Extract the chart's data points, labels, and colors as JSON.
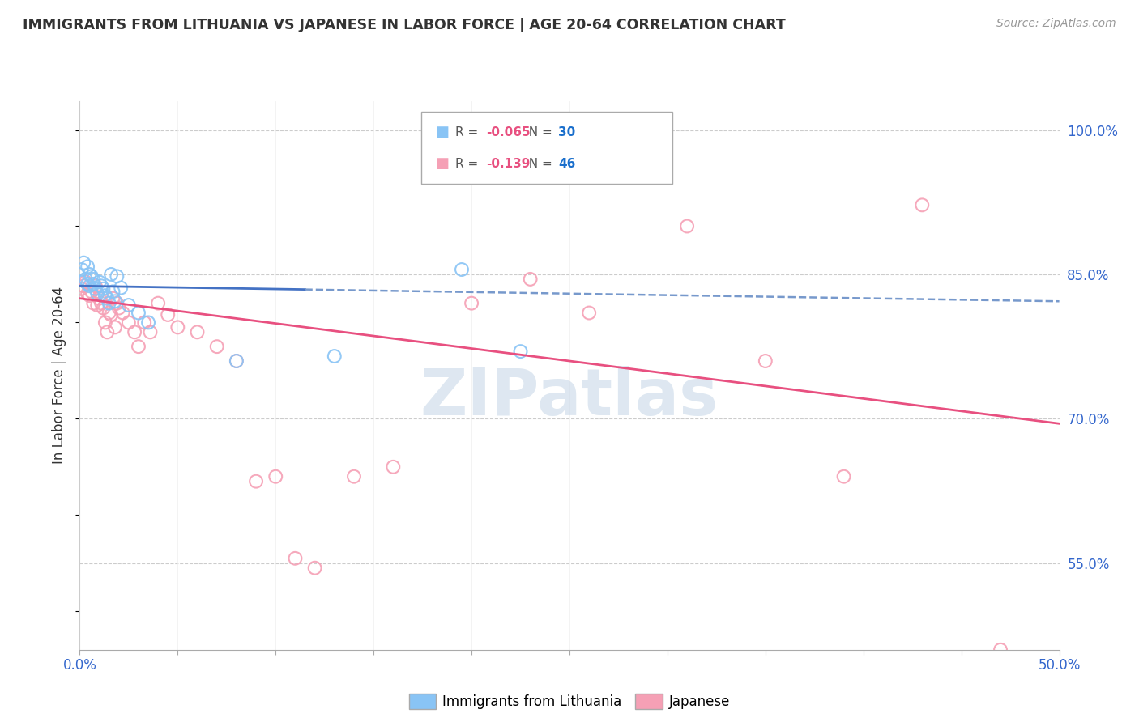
{
  "title": "IMMIGRANTS FROM LITHUANIA VS JAPANESE IN LABOR FORCE | AGE 20-64 CORRELATION CHART",
  "source": "Source: ZipAtlas.com",
  "ylabel": "In Labor Force | Age 20-64",
  "xlim": [
    0.0,
    0.5
  ],
  "ylim": [
    0.46,
    1.03
  ],
  "xtick_vals": [
    0.0,
    0.5
  ],
  "xtick_labels": [
    "0.0%",
    "50.0%"
  ],
  "ytick_vals": [
    0.55,
    0.7,
    0.85,
    1.0
  ],
  "ytick_labels": [
    "55.0%",
    "70.0%",
    "85.0%",
    "100.0%"
  ],
  "grid_vals": [
    0.55,
    0.7,
    0.85,
    1.0
  ],
  "grid_color": "#cccccc",
  "background_color": "#ffffff",
  "watermark": "ZIPatlas",
  "watermark_color": "#c8d8e8",
  "series1_label": "Immigrants from Lithuania",
  "series1_color": "#89c4f5",
  "series1_R": "-0.065",
  "series1_N": "30",
  "series2_label": "Japanese",
  "series2_color": "#f5a0b5",
  "series2_R": "-0.139",
  "series2_N": "46",
  "series1_x": [
    0.001,
    0.002,
    0.003,
    0.004,
    0.004,
    0.005,
    0.005,
    0.006,
    0.007,
    0.007,
    0.008,
    0.009,
    0.01,
    0.011,
    0.012,
    0.013,
    0.014,
    0.015,
    0.016,
    0.017,
    0.018,
    0.019,
    0.021,
    0.025,
    0.03,
    0.035,
    0.08,
    0.13,
    0.195,
    0.225
  ],
  "series1_y": [
    0.855,
    0.862,
    0.845,
    0.858,
    0.84,
    0.85,
    0.838,
    0.848,
    0.845,
    0.84,
    0.835,
    0.83,
    0.842,
    0.838,
    0.835,
    0.828,
    0.825,
    0.82,
    0.85,
    0.832,
    0.822,
    0.848,
    0.836,
    0.818,
    0.81,
    0.8,
    0.76,
    0.765,
    0.855,
    0.77
  ],
  "series2_x": [
    0.001,
    0.002,
    0.003,
    0.004,
    0.005,
    0.006,
    0.007,
    0.008,
    0.009,
    0.01,
    0.011,
    0.012,
    0.013,
    0.014,
    0.015,
    0.016,
    0.017,
    0.018,
    0.019,
    0.02,
    0.022,
    0.025,
    0.028,
    0.03,
    0.033,
    0.036,
    0.04,
    0.045,
    0.05,
    0.06,
    0.07,
    0.08,
    0.09,
    0.1,
    0.11,
    0.12,
    0.14,
    0.16,
    0.2,
    0.23,
    0.26,
    0.31,
    0.35,
    0.39,
    0.43,
    0.47
  ],
  "series2_y": [
    0.835,
    0.838,
    0.842,
    0.83,
    0.828,
    0.832,
    0.82,
    0.838,
    0.818,
    0.825,
    0.82,
    0.815,
    0.8,
    0.79,
    0.81,
    0.808,
    0.825,
    0.795,
    0.82,
    0.815,
    0.81,
    0.8,
    0.79,
    0.775,
    0.8,
    0.79,
    0.82,
    0.808,
    0.795,
    0.79,
    0.775,
    0.76,
    0.635,
    0.64,
    0.555,
    0.545,
    0.64,
    0.65,
    0.82,
    0.845,
    0.81,
    0.9,
    0.76,
    0.64,
    0.922,
    0.46
  ],
  "trendline1_color_solid": "#4472c4",
  "trendline1_color_dash": "#7799cc",
  "trendline2_color": "#e85080",
  "legend_R1_color": "#e85080",
  "legend_N1_color": "#1a6fcc",
  "legend_R2_color": "#e85080",
  "legend_N2_color": "#1a6fcc"
}
